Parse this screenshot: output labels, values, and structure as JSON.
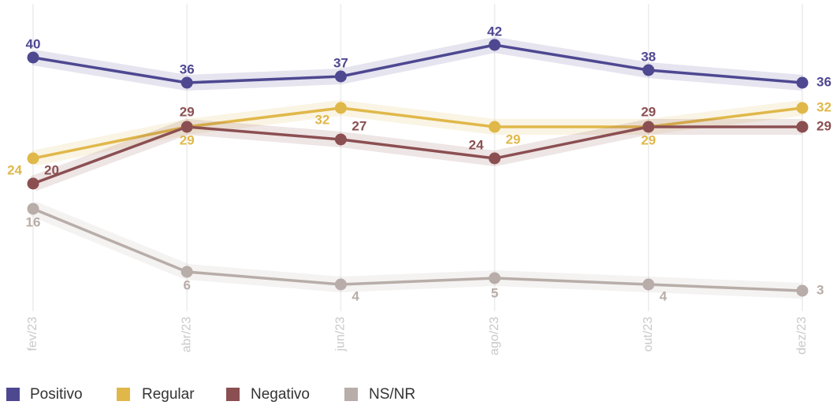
{
  "chart_data": {
    "type": "line",
    "categories": [
      "fev/23",
      "abr/23",
      "jun/23",
      "ago/23",
      "out/23",
      "dez/23"
    ],
    "series": [
      {
        "name": "Positivo",
        "color": "#4e4891",
        "values": [
          40,
          36,
          37,
          42,
          38,
          36
        ]
      },
      {
        "name": "Regular",
        "color": "#e0b84a",
        "values": [
          24,
          29,
          32,
          29,
          29,
          32
        ]
      },
      {
        "name": "Negativo",
        "color": "#8b4f52",
        "values": [
          20,
          29,
          27,
          24,
          29,
          29
        ]
      },
      {
        "name": "NS/NR",
        "color": "#b8ada8",
        "values": [
          16,
          6,
          4,
          5,
          4,
          3
        ]
      }
    ],
    "ylim": [
      0,
      45
    ],
    "grid": true
  }
}
